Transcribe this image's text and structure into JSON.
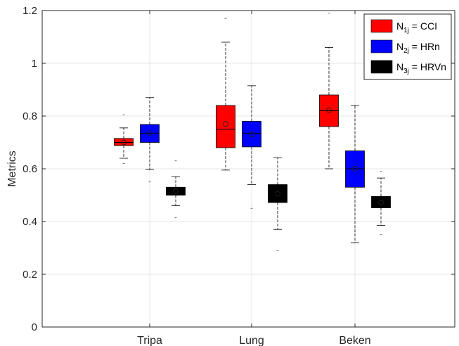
{
  "chart_data": {
    "type": "box",
    "ylabel": "Metrics",
    "xlabel": "",
    "ylim": [
      0,
      1.2
    ],
    "yticks": [
      "0",
      "0.2",
      "0.4",
      "0.6",
      "0.8",
      "1",
      "1.2"
    ],
    "categories": [
      "Tripa",
      "Lung",
      "Beken"
    ],
    "grid": true,
    "legend_position": "top-right",
    "series": [
      {
        "legend_main": "N",
        "legend_sub": "1j",
        "legend_rest": " = CCI",
        "color": "#ff0000",
        "boxes": [
          {
            "whisker_low": 0.64,
            "q1": 0.688,
            "median": 0.7,
            "q3": 0.715,
            "whisker_high": 0.755,
            "mean": 0.7,
            "outliers": [
              0.62,
              0.805
            ]
          },
          {
            "whisker_low": 0.595,
            "q1": 0.68,
            "median": 0.75,
            "q3": 0.84,
            "whisker_high": 1.08,
            "mean": 0.77,
            "outliers": [
              1.17
            ]
          },
          {
            "whisker_low": 0.6,
            "q1": 0.76,
            "median": 0.82,
            "q3": 0.88,
            "whisker_high": 1.06,
            "mean": 0.822,
            "outliers": [
              1.19
            ]
          }
        ]
      },
      {
        "legend_main": "N",
        "legend_sub": "2j",
        "legend_rest": " = HRn",
        "color": "#0000ff",
        "boxes": [
          {
            "whisker_low": 0.597,
            "q1": 0.7,
            "median": 0.735,
            "q3": 0.768,
            "whisker_high": 0.87,
            "mean": 0.735,
            "outliers": [
              0.55
            ]
          },
          {
            "whisker_low": 0.54,
            "q1": 0.683,
            "median": 0.735,
            "q3": 0.78,
            "whisker_high": 0.915,
            "mean": 0.73,
            "outliers": [
              0.45
            ]
          },
          {
            "whisker_low": 0.32,
            "q1": 0.53,
            "median": 0.6,
            "q3": 0.668,
            "whisker_high": 0.84,
            "mean": 0.6,
            "outliers": []
          }
        ]
      },
      {
        "legend_main": "N",
        "legend_sub": "3j",
        "legend_rest": " = HRVn",
        "color": "#000000",
        "boxes": [
          {
            "whisker_low": 0.46,
            "q1": 0.5,
            "median": 0.515,
            "q3": 0.53,
            "whisker_high": 0.57,
            "mean": 0.515,
            "outliers": [
              0.415,
              0.63
            ]
          },
          {
            "whisker_low": 0.37,
            "q1": 0.472,
            "median": 0.5,
            "q3": 0.54,
            "whisker_high": 0.642,
            "mean": 0.505,
            "outliers": [
              0.29
            ]
          },
          {
            "whisker_low": 0.385,
            "q1": 0.452,
            "median": 0.47,
            "q3": 0.495,
            "whisker_high": 0.565,
            "mean": 0.472,
            "outliers": [
              0.35,
              0.59
            ]
          }
        ]
      }
    ]
  }
}
